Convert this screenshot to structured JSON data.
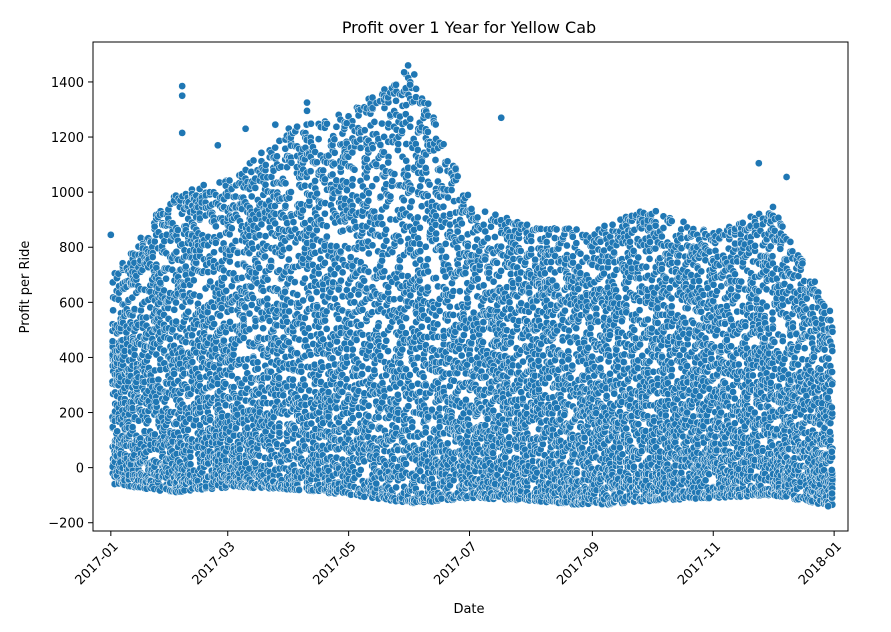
{
  "chart_data": {
    "type": "scatter",
    "title": "Profit over 1 Year for Yellow Cab",
    "xlabel": "Date",
    "ylabel": "Profit per Ride",
    "x_range": [
      "2016-12-23",
      "2018-01-08"
    ],
    "ylim": [
      -230,
      1545
    ],
    "x_ticks": [
      "2017-01",
      "2017-03",
      "2017-05",
      "2017-07",
      "2017-09",
      "2017-11",
      "2018-01"
    ],
    "y_ticks": [
      -200,
      0,
      200,
      400,
      600,
      800,
      1000,
      1200,
      1400
    ],
    "grid": false,
    "legend": "none",
    "marker_color": "#1f77b4",
    "marker_edge_color": "#ffffff",
    "series": [
      {
        "x_start": "2017-01-02",
        "x_end": "2017-12-31",
        "x_step_days": 1,
        "points_per_day": 30,
        "y_min_envelope": [
          -60,
          -90,
          -70,
          -80,
          -100,
          -130,
          -110,
          -120,
          -140,
          -120,
          -110,
          -100,
          -140
        ],
        "y_max_envelope": [
          700,
          1000,
          1050,
          1250,
          1300,
          1450,
          950,
          880,
          860,
          950,
          850,
          950,
          560
        ],
        "outliers": [
          {
            "x": "2017-01-01",
            "y": 845
          },
          {
            "x": "2017-02-06",
            "y": 1385
          },
          {
            "x": "2017-02-06",
            "y": 1350
          },
          {
            "x": "2017-02-06",
            "y": 1215
          },
          {
            "x": "2017-02-24",
            "y": 1170
          },
          {
            "x": "2017-03-10",
            "y": 1230
          },
          {
            "x": "2017-03-25",
            "y": 1245
          },
          {
            "x": "2017-04-10",
            "y": 1325
          },
          {
            "x": "2017-04-10",
            "y": 1295
          },
          {
            "x": "2017-04-30",
            "y": 1250
          },
          {
            "x": "2017-05-14",
            "y": 1255
          },
          {
            "x": "2017-05-29",
            "y": 1435
          },
          {
            "x": "2017-05-31",
            "y": 1460
          },
          {
            "x": "2017-06-01",
            "y": 1390
          },
          {
            "x": "2017-07-17",
            "y": 1270
          },
          {
            "x": "2017-11-24",
            "y": 1105
          },
          {
            "x": "2017-12-08",
            "y": 1055
          },
          {
            "x": "2017-12-29",
            "y": -140
          }
        ]
      }
    ]
  }
}
